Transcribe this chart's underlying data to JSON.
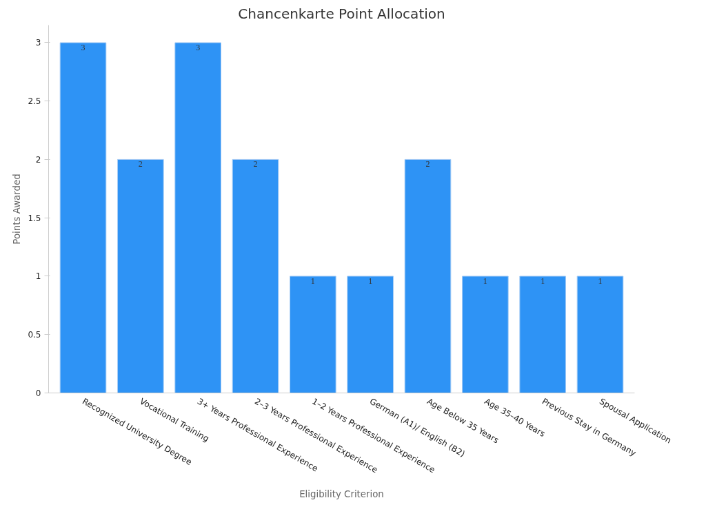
{
  "chart_data": {
    "type": "bar",
    "title": "Chancenkarte Point Allocation",
    "xlabel": "Eligibility Criterion",
    "ylabel": "Points Awarded",
    "categories": [
      "Recognized University Degree",
      "Vocational Training",
      "3+ Years Professional Experience",
      "2–3 Years Professional Experience",
      "1–2 Years Professional Experience",
      "German (A1)/ English (B2)",
      "Age Below 35 Years",
      "Age 35–40 Years",
      "Previous Stay in Germany",
      "Spousal Application"
    ],
    "values": [
      3,
      2,
      3,
      2,
      1,
      1,
      2,
      1,
      1,
      1
    ],
    "color": "#2e93f5",
    "ylim": [
      0,
      3.15
    ],
    "yticks": [
      0,
      0.5,
      1,
      1.5,
      2,
      2.5,
      3
    ],
    "grid": false,
    "data_labels": true
  }
}
